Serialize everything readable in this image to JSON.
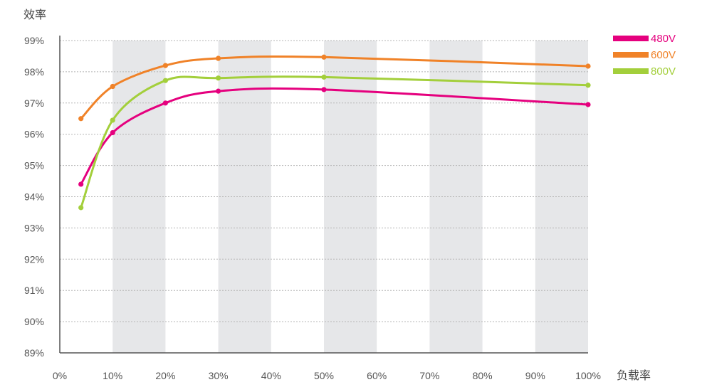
{
  "chart_data": {
    "type": "line",
    "ylabel": "效率",
    "xlabel": "负载率",
    "x_ticks": [
      "0%",
      "10%",
      "20%",
      "30%",
      "40%",
      "50%",
      "60%",
      "70%",
      "80%",
      "90%",
      "100%"
    ],
    "y_ticks": [
      "89%",
      "90%",
      "91%",
      "92%",
      "93%",
      "94%",
      "95%",
      "96%",
      "97%",
      "98%",
      "99%"
    ],
    "xlim": [
      0,
      100
    ],
    "ylim": [
      89,
      99
    ],
    "grid": "horizontal dotted",
    "shaded_bands": [
      [
        10,
        20
      ],
      [
        30,
        40
      ],
      [
        50,
        60
      ],
      [
        70,
        80
      ],
      [
        90,
        100
      ]
    ],
    "legend_position": "top-right",
    "series": [
      {
        "name": "480V",
        "color": "#e5007e",
        "x": [
          4,
          10,
          20,
          30,
          50,
          100
        ],
        "y": [
          94.4,
          96.05,
          97.0,
          97.38,
          97.43,
          96.95
        ]
      },
      {
        "name": "600V",
        "color": "#f08228",
        "x": [
          4,
          10,
          20,
          30,
          50,
          100
        ],
        "y": [
          96.5,
          97.53,
          98.2,
          98.43,
          98.47,
          98.18
        ]
      },
      {
        "name": "800V",
        "color": "#a3cf3b",
        "x": [
          4,
          10,
          20,
          30,
          50,
          100
        ],
        "y": [
          93.65,
          96.45,
          97.72,
          97.8,
          97.83,
          97.57
        ]
      }
    ]
  }
}
